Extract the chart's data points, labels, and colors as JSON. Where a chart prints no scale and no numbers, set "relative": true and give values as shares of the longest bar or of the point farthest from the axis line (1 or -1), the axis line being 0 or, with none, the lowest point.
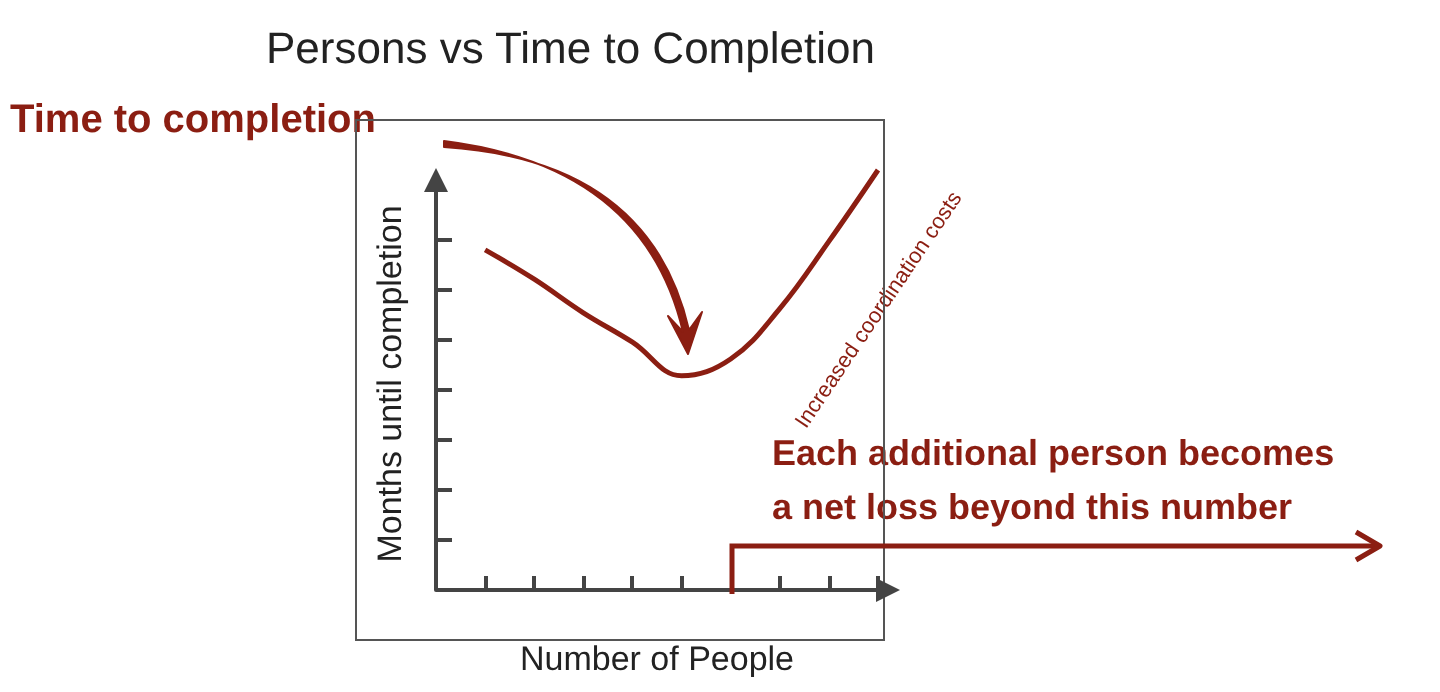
{
  "chart_data": {
    "type": "line",
    "title": "Persons vs Time to Completion",
    "xlabel": "Number of People",
    "ylabel": "Months until completion",
    "relative": true,
    "marker": "none",
    "categories": [
      null,
      null,
      null,
      null,
      null,
      null,
      null,
      null,
      null,
      null
    ],
    "series": [
      {
        "color": "#8b1e12",
        "values": [
          null,
          0.81,
          0.74,
          0.66,
          0.59,
          0.51,
          0.55,
          0.67,
          0.83,
          1.0
        ]
      }
    ],
    "annotations": [
      "Time to completion",
      "Increased coordination costs",
      "Each additional person becomes\na net loss beyond this number"
    ]
  }
}
